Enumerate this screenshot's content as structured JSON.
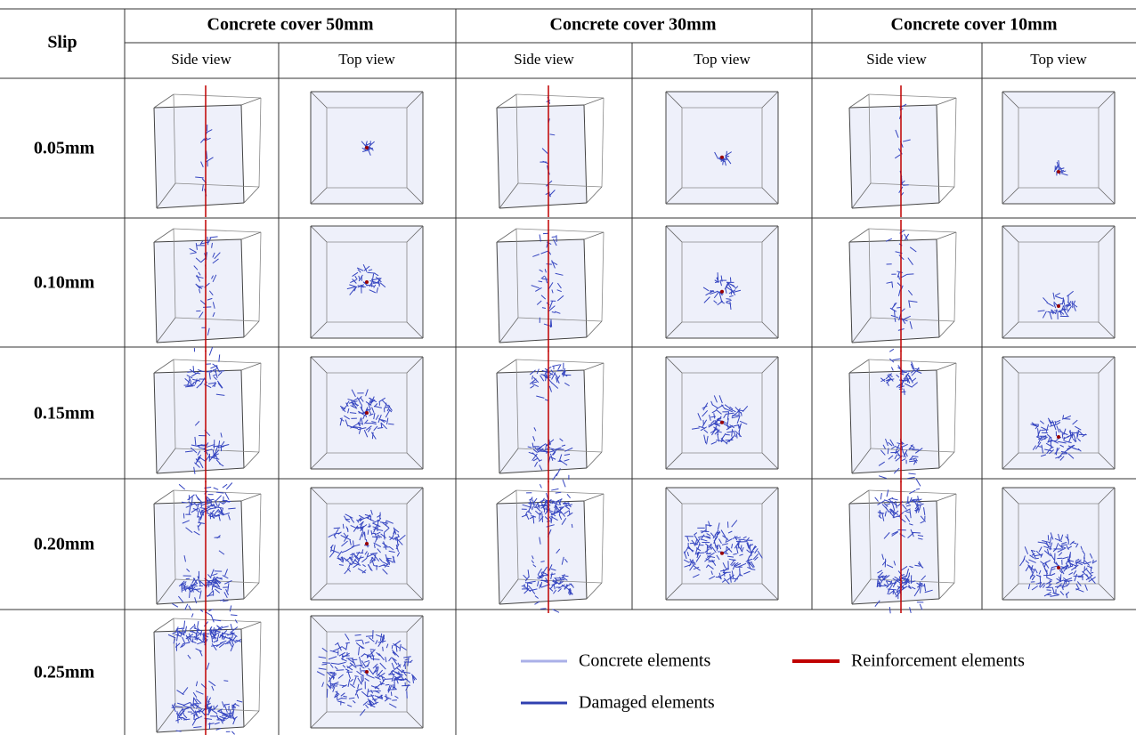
{
  "table": {
    "corner": "Slip",
    "groups": [
      "Concrete cover 50mm",
      "Concrete cover 30mm",
      "Concrete cover 10mm"
    ],
    "subheaders": [
      "Side view",
      "Top view",
      "Side view",
      "Top view",
      "Side view",
      "Top view"
    ],
    "rows": [
      "0.05mm",
      "0.10mm",
      "0.15mm",
      "0.20mm",
      "0.25mm"
    ]
  },
  "legend": [
    "Concrete elements",
    "Reinforcement elements",
    "Damaged elements"
  ]
}
